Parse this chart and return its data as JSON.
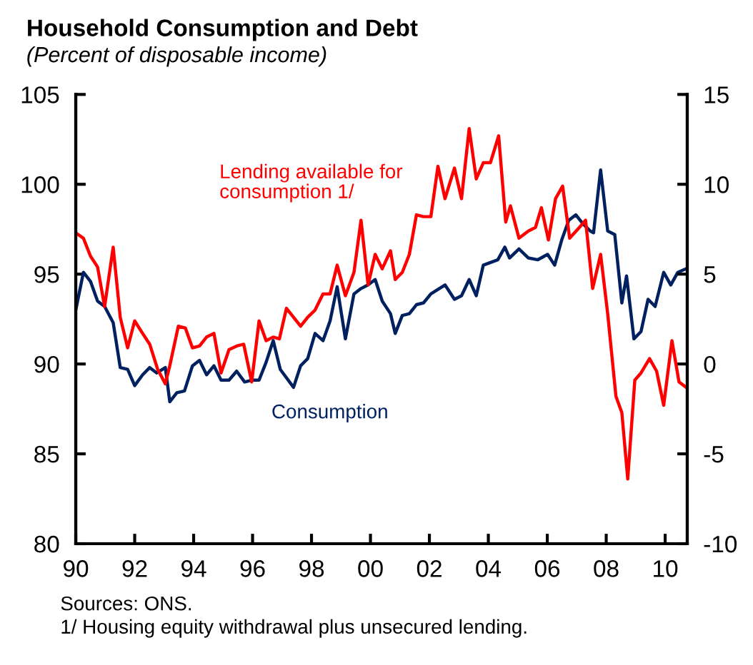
{
  "chart_data": {
    "type": "line",
    "title": "Household Consumption and Debt",
    "subtitle": "(Percent of disposable income)",
    "annotations": [
      "Sources: ONS.",
      "1/ Housing equity withdrawal plus unsecured lending."
    ],
    "xlim": [
      1990,
      2010.75
    ],
    "xticks": [
      {
        "value": 1990,
        "label": "90"
      },
      {
        "value": 1992,
        "label": "92"
      },
      {
        "value": 1994,
        "label": "94"
      },
      {
        "value": 1996,
        "label": "96"
      },
      {
        "value": 1998,
        "label": "98"
      },
      {
        "value": 2000,
        "label": "00"
      },
      {
        "value": 2002,
        "label": "02"
      },
      {
        "value": 2004,
        "label": "04"
      },
      {
        "value": 2006,
        "label": "06"
      },
      {
        "value": 2008,
        "label": "08"
      },
      {
        "value": 2010,
        "label": "10"
      }
    ],
    "ylim": [
      80,
      105
    ],
    "yticks": [
      80,
      85,
      90,
      95,
      100,
      105
    ],
    "y2lim": [
      -10,
      15
    ],
    "y2ticks": [
      -10,
      -5,
      0,
      5,
      10,
      15
    ],
    "grid": false,
    "legend": false,
    "marker": "none",
    "line_style": "solid",
    "series": [
      {
        "name": "Consumption",
        "color": "#002060",
        "axis": "y",
        "x": [
          1990.0,
          1990.26,
          1990.5,
          1990.74,
          1990.98,
          1991.27,
          1991.51,
          1991.76,
          1992.0,
          1992.27,
          1992.51,
          1992.75,
          1993.04,
          1993.19,
          1993.43,
          1993.69,
          1993.96,
          1994.2,
          1994.44,
          1994.69,
          1994.93,
          1995.2,
          1995.46,
          1995.73,
          1995.97,
          1996.22,
          1996.46,
          1996.7,
          1996.94,
          1997.39,
          1997.63,
          1997.87,
          1998.12,
          1998.39,
          1998.63,
          1998.87,
          1999.15,
          1999.44,
          1999.68,
          1999.92,
          2000.16,
          2000.4,
          2000.68,
          2000.84,
          2001.08,
          2001.32,
          2001.56,
          2001.8,
          2002.05,
          2002.53,
          2002.85,
          2003.09,
          2003.35,
          2003.59,
          2003.83,
          2004.32,
          2004.56,
          2004.72,
          2005.04,
          2005.36,
          2005.68,
          2006.01,
          2006.25,
          2006.49,
          2006.73,
          2006.97,
          2007.21,
          2007.46,
          2007.57,
          2007.81,
          2008.05,
          2008.29,
          2008.53,
          2008.69,
          2008.94,
          2009.18,
          2009.42,
          2009.66,
          2009.95,
          2010.19,
          2010.43,
          2010.71
        ],
        "values": [
          93.0,
          95.1,
          94.6,
          93.5,
          93.2,
          92.3,
          89.8,
          89.7,
          88.8,
          89.4,
          89.8,
          89.5,
          89.8,
          87.9,
          88.4,
          88.5,
          89.9,
          90.2,
          89.4,
          89.9,
          89.1,
          89.1,
          89.6,
          89.0,
          89.1,
          89.1,
          90.1,
          91.3,
          89.7,
          88.7,
          89.9,
          90.3,
          91.7,
          91.3,
          92.4,
          94.3,
          91.4,
          93.9,
          94.2,
          94.4,
          94.7,
          93.5,
          92.8,
          91.7,
          92.7,
          92.8,
          93.3,
          93.4,
          93.9,
          94.4,
          93.6,
          93.8,
          94.7,
          93.8,
          95.5,
          95.8,
          96.5,
          95.9,
          96.4,
          95.9,
          95.8,
          96.1,
          95.5,
          96.9,
          98.0,
          98.3,
          97.8,
          97.4,
          97.3,
          100.8,
          97.4,
          97.2,
          93.4,
          94.9,
          91.4,
          91.8,
          93.6,
          93.2,
          95.1,
          94.4,
          95.1,
          95.3
        ]
      },
      {
        "name": "Lending available for\nconsumption 1/",
        "color": "#ff0000",
        "axis": "y2",
        "x": [
          1990.0,
          1990.26,
          1990.5,
          1990.74,
          1990.98,
          1991.27,
          1991.51,
          1991.76,
          1992.0,
          1992.27,
          1992.51,
          1992.78,
          1993.04,
          1993.19,
          1993.48,
          1993.72,
          1993.96,
          1994.2,
          1994.44,
          1994.69,
          1994.93,
          1995.2,
          1995.46,
          1995.7,
          1995.97,
          1996.22,
          1996.46,
          1996.7,
          1996.91,
          1997.15,
          1997.39,
          1997.63,
          1997.87,
          1998.12,
          1998.39,
          1998.63,
          1998.87,
          1999.15,
          1999.44,
          1999.68,
          1999.92,
          2000.16,
          2000.4,
          2000.68,
          2000.84,
          2001.08,
          2001.32,
          2001.56,
          2001.8,
          2002.05,
          2002.29,
          2002.53,
          2002.85,
          2003.09,
          2003.35,
          2003.59,
          2003.83,
          2004.07,
          2004.35,
          2004.59,
          2004.75,
          2005.04,
          2005.36,
          2005.6,
          2005.8,
          2006.04,
          2006.28,
          2006.52,
          2006.76,
          2007.09,
          2007.3,
          2007.54,
          2007.81,
          2008.05,
          2008.33,
          2008.53,
          2008.73,
          2008.97,
          2009.18,
          2009.47,
          2009.71,
          2009.95,
          2010.23,
          2010.47,
          2010.71
        ],
        "values": [
          7.3,
          7.0,
          6.0,
          5.4,
          3.2,
          6.5,
          2.6,
          0.9,
          2.4,
          1.7,
          1.1,
          -0.3,
          -1.1,
          -0.1,
          2.1,
          2.0,
          0.9,
          1.0,
          1.5,
          1.7,
          -0.5,
          0.8,
          1.0,
          1.1,
          -1.0,
          2.4,
          1.3,
          1.5,
          1.4,
          3.1,
          2.6,
          2.1,
          2.6,
          3.0,
          3.9,
          3.9,
          5.5,
          3.8,
          5.1,
          8.0,
          4.4,
          6.1,
          5.3,
          6.3,
          4.7,
          5.1,
          6.1,
          8.3,
          8.2,
          8.2,
          11.0,
          9.2,
          10.9,
          9.2,
          13.1,
          10.3,
          11.2,
          11.2,
          12.7,
          7.9,
          8.8,
          7.0,
          7.4,
          7.6,
          8.7,
          6.9,
          9.2,
          9.9,
          7.0,
          7.6,
          8.0,
          4.2,
          6.1,
          2.8,
          -1.8,
          -2.7,
          -6.4,
          -0.9,
          -0.5,
          0.3,
          -0.4,
          -2.3,
          1.3,
          -1.0,
          -1.3
        ]
      }
    ]
  }
}
